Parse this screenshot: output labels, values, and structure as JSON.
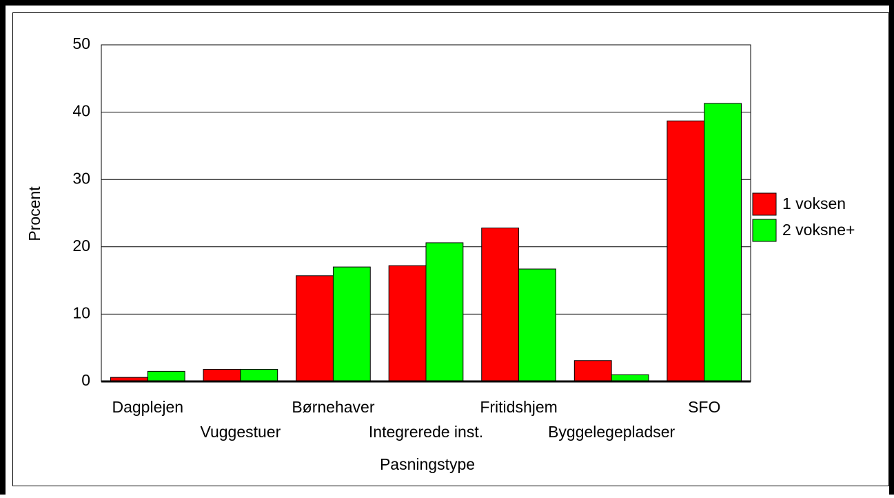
{
  "chart_data": {
    "type": "bar",
    "categories": [
      "Dagplejen",
      "Vuggestuer",
      "Børnehaver",
      "Integrerede inst.",
      "Fritidshjem",
      "Byggelegepladser",
      "SFO"
    ],
    "series": [
      {
        "name": "1 voksen",
        "color": "#ff0000",
        "values": [
          0.6,
          1.8,
          15.7,
          17.2,
          22.8,
          3.1,
          38.7
        ]
      },
      {
        "name": "2 voksne+",
        "color": "#00ff00",
        "values": [
          1.5,
          1.8,
          17.0,
          20.6,
          16.7,
          1.0,
          41.3
        ]
      }
    ],
    "x_label": "Pasningstype",
    "y_label": "Procent",
    "ylim": [
      0,
      50
    ],
    "yticks": [
      0,
      10,
      20,
      30,
      40,
      50
    ],
    "grid": true,
    "legend": "right"
  }
}
